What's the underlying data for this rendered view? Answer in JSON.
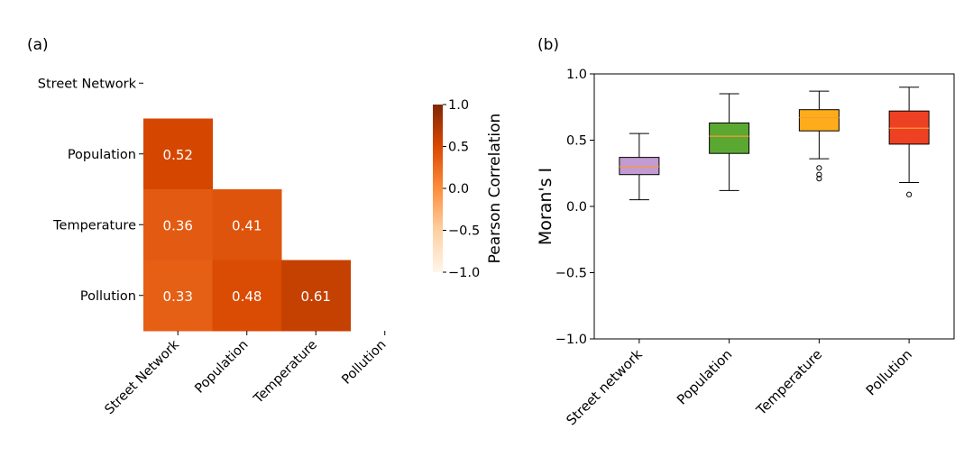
{
  "chart_data": [
    {
      "type": "heatmap",
      "panel_label": "(a)",
      "rows": [
        "Street Network",
        "Population",
        "Temperature",
        "Pollution"
      ],
      "cols": [
        "Street Network",
        "Population",
        "Temperature",
        "Pollution"
      ],
      "cells": [
        {
          "row": 1,
          "col": 0,
          "value": 0.52,
          "label": "0.52"
        },
        {
          "row": 2,
          "col": 0,
          "value": 0.36,
          "label": "0.36"
        },
        {
          "row": 2,
          "col": 1,
          "value": 0.41,
          "label": "0.41"
        },
        {
          "row": 3,
          "col": 0,
          "value": 0.33,
          "label": "0.33"
        },
        {
          "row": 3,
          "col": 1,
          "value": 0.48,
          "label": "0.48"
        },
        {
          "row": 3,
          "col": 2,
          "value": 0.61,
          "label": "0.61"
        }
      ],
      "colorbar": {
        "label": "Pearson Correlation",
        "range": [
          -1.0,
          1.0
        ],
        "ticks": [
          1.0,
          0.5,
          0.0,
          -0.5,
          -1.0
        ],
        "tick_labels": [
          "1.0",
          "0.5",
          "0.0",
          "−0.5",
          "−1.0"
        ],
        "colormap": "Oranges"
      }
    },
    {
      "type": "box",
      "panel_label": "(b)",
      "ylabel": "Moran's I",
      "ylim": [
        -1.0,
        1.0
      ],
      "yticks": [
        1.0,
        0.5,
        0.0,
        -0.5,
        -1.0
      ],
      "ytick_labels": [
        "1.0",
        "0.5",
        "0.0",
        "−0.5",
        "−1.0"
      ],
      "categories": [
        "Street network",
        "Population",
        "Temperature",
        "Pollution"
      ],
      "boxes": [
        {
          "name": "Street network",
          "color": "#c39bd3",
          "whisker_low": 0.05,
          "q1": 0.24,
          "median": 0.3,
          "q3": 0.37,
          "whisker_high": 0.55,
          "outliers": []
        },
        {
          "name": "Population",
          "color": "#5aa832",
          "whisker_low": 0.12,
          "q1": 0.4,
          "median": 0.53,
          "q3": 0.63,
          "whisker_high": 0.85,
          "outliers": []
        },
        {
          "name": "Temperature",
          "color": "#ffac1c",
          "whisker_low": 0.36,
          "q1": 0.57,
          "median": 0.67,
          "q3": 0.73,
          "whisker_high": 0.87,
          "outliers": [
            0.29,
            0.24,
            0.21
          ]
        },
        {
          "name": "Pollution",
          "color": "#ee4124",
          "whisker_low": 0.18,
          "q1": 0.47,
          "median": 0.59,
          "q3": 0.72,
          "whisker_high": 0.9,
          "outliers": [
            0.09
          ]
        }
      ],
      "median_color": "#ff9a2e"
    }
  ]
}
